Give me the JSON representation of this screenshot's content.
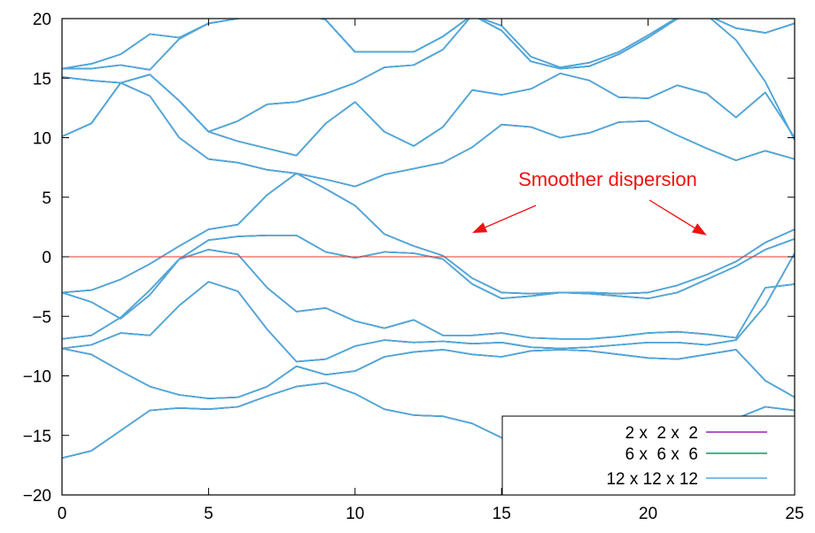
{
  "chart_data": {
    "type": "line",
    "title": "",
    "xlabel": "",
    "ylabel": "",
    "xlim": [
      0,
      25
    ],
    "ylim": [
      -20,
      20
    ],
    "x_ticks": [
      0,
      5,
      10,
      15,
      20,
      25
    ],
    "y_ticks": [
      -20,
      -15,
      -10,
      -5,
      0,
      5,
      10,
      15,
      20
    ],
    "x_tick_labels": [
      "0",
      "5",
      "10",
      "15",
      "20",
      "25"
    ],
    "y_tick_labels": [
      "−20",
      "−15",
      "−10",
      "−5",
      "0",
      "5",
      "10",
      "15",
      "20"
    ],
    "grid": false,
    "legend_position": "bottom-right",
    "reference_line": {
      "y": 0,
      "color": "#e8392c"
    },
    "annotation": {
      "text": "Smoother dispersion",
      "color": "#ee1111",
      "arrow_targets": [
        [
          14,
          2
        ],
        [
          22,
          1.8
        ]
      ]
    },
    "series": [
      {
        "name": "2 x  2 x  2",
        "color": "#9a1fb8"
      },
      {
        "name": "6 x  6 x  6",
        "color": "#0f9a5e"
      },
      {
        "name": "12 x 12 x 12",
        "color": "#4fa8e0"
      }
    ],
    "x": [
      0,
      1,
      2,
      3,
      4,
      5,
      6,
      7,
      8,
      9,
      10,
      11,
      12,
      13,
      14,
      15,
      16,
      17,
      18,
      19,
      20,
      21,
      22,
      23,
      24,
      25
    ],
    "bands": [
      [
        -16.9,
        -16.3,
        -14.6,
        -12.9,
        -12.7,
        -12.8,
        -12.6,
        -11.7,
        -10.9,
        -10.6,
        -11.5,
        -12.8,
        -13.3,
        -13.4,
        -14.0,
        -15.2,
        -16.0,
        -16.5,
        -16.6,
        -16.4,
        -16.0,
        -15.2,
        -14.4,
        -13.6,
        -12.6,
        -12.9
      ],
      [
        -7.7,
        -8.2,
        -9.6,
        -10.9,
        -11.6,
        -11.9,
        -11.8,
        -10.9,
        -9.2,
        -9.9,
        -9.6,
        -8.4,
        -8.0,
        -7.8,
        -8.2,
        -8.4,
        -7.9,
        -7.8,
        -7.9,
        -8.2,
        -8.5,
        -8.6,
        -8.2,
        -7.8,
        -10.4,
        -11.8
      ],
      [
        -7.7,
        -7.4,
        -6.4,
        -6.6,
        -4.1,
        -2.1,
        -2.9,
        -6.1,
        -8.8,
        -8.6,
        -7.5,
        -7.0,
        -7.2,
        -7.1,
        -7.3,
        -7.2,
        -7.6,
        -7.7,
        -7.6,
        -7.4,
        -7.2,
        -7.2,
        -7.4,
        -7.0,
        -4.1,
        0.3
      ],
      [
        -6.9,
        -6.6,
        -5.1,
        -2.8,
        -0.2,
        0.6,
        0.2,
        -2.6,
        -4.6,
        -4.3,
        -5.4,
        -6.0,
        -5.3,
        -6.6,
        -6.6,
        -6.4,
        -6.8,
        -6.9,
        -6.9,
        -6.7,
        -6.4,
        -6.3,
        -6.5,
        -6.8,
        -2.6,
        -2.3
      ],
      [
        -3.0,
        -3.8,
        -5.2,
        -3.2,
        -0.2,
        1.4,
        1.7,
        1.8,
        1.8,
        0.4,
        -0.1,
        0.4,
        0.3,
        -0.2,
        -2.3,
        -3.5,
        -3.3,
        -3.0,
        -3.1,
        -3.3,
        -3.5,
        -3.0,
        -1.9,
        -0.8,
        0.6,
        1.5
      ],
      [
        -3.0,
        -2.8,
        -1.9,
        -0.6,
        0.9,
        2.3,
        2.7,
        5.2,
        7.0,
        5.7,
        4.3,
        1.9,
        0.9,
        0.1,
        -1.8,
        -3.0,
        -3.1,
        -3.0,
        -3.0,
        -3.1,
        -3.0,
        -2.4,
        -1.5,
        -0.4,
        1.2,
        2.3
      ],
      [
        10.1,
        11.2,
        14.6,
        13.5,
        10.0,
        8.2,
        7.9,
        7.3,
        7.0,
        6.5,
        5.9,
        6.9,
        7.4,
        7.9,
        9.2,
        11.1,
        10.9,
        10.0,
        10.4,
        11.3,
        11.4,
        10.2,
        9.1,
        8.1,
        8.9,
        8.2
      ],
      [
        10.1,
        11.2,
        14.6,
        15.3,
        13.1,
        10.5,
        9.7,
        9.1,
        8.5,
        11.2,
        13.0,
        10.5,
        9.3,
        10.9,
        14.0,
        13.6,
        14.1,
        15.4,
        14.8,
        13.4,
        13.3,
        14.4,
        13.7,
        11.7,
        13.8,
        10.0
      ],
      [
        15.1,
        14.8,
        14.6,
        15.3,
        13.1,
        10.5,
        11.4,
        12.8,
        13.0,
        13.7,
        14.6,
        15.9,
        16.1,
        17.4,
        20.3,
        19.4,
        16.8,
        15.9,
        16.3,
        17.2,
        18.6,
        20.1,
        20.3,
        18.2,
        14.7,
        9.8
      ],
      [
        15.8,
        15.8,
        16.1,
        15.7,
        18.3,
        19.6,
        20.0,
        20.5,
        20.6,
        19.9,
        17.2,
        17.2,
        17.2,
        18.5,
        20.3,
        19.0,
        16.4,
        15.8,
        16.0,
        17.0,
        18.4,
        20.0,
        20.3,
        19.2,
        18.8,
        19.6
      ],
      [
        15.8,
        16.2,
        17.0,
        18.7,
        18.4,
        19.6,
        20.0,
        21.0,
        20.6,
        19.9,
        17.2,
        17.2,
        17.2,
        18.5,
        20.3,
        19.0,
        16.4,
        15.8,
        16.0,
        17.0,
        18.4,
        20.0,
        20.3,
        19.2,
        18.8,
        19.6
      ]
    ]
  }
}
